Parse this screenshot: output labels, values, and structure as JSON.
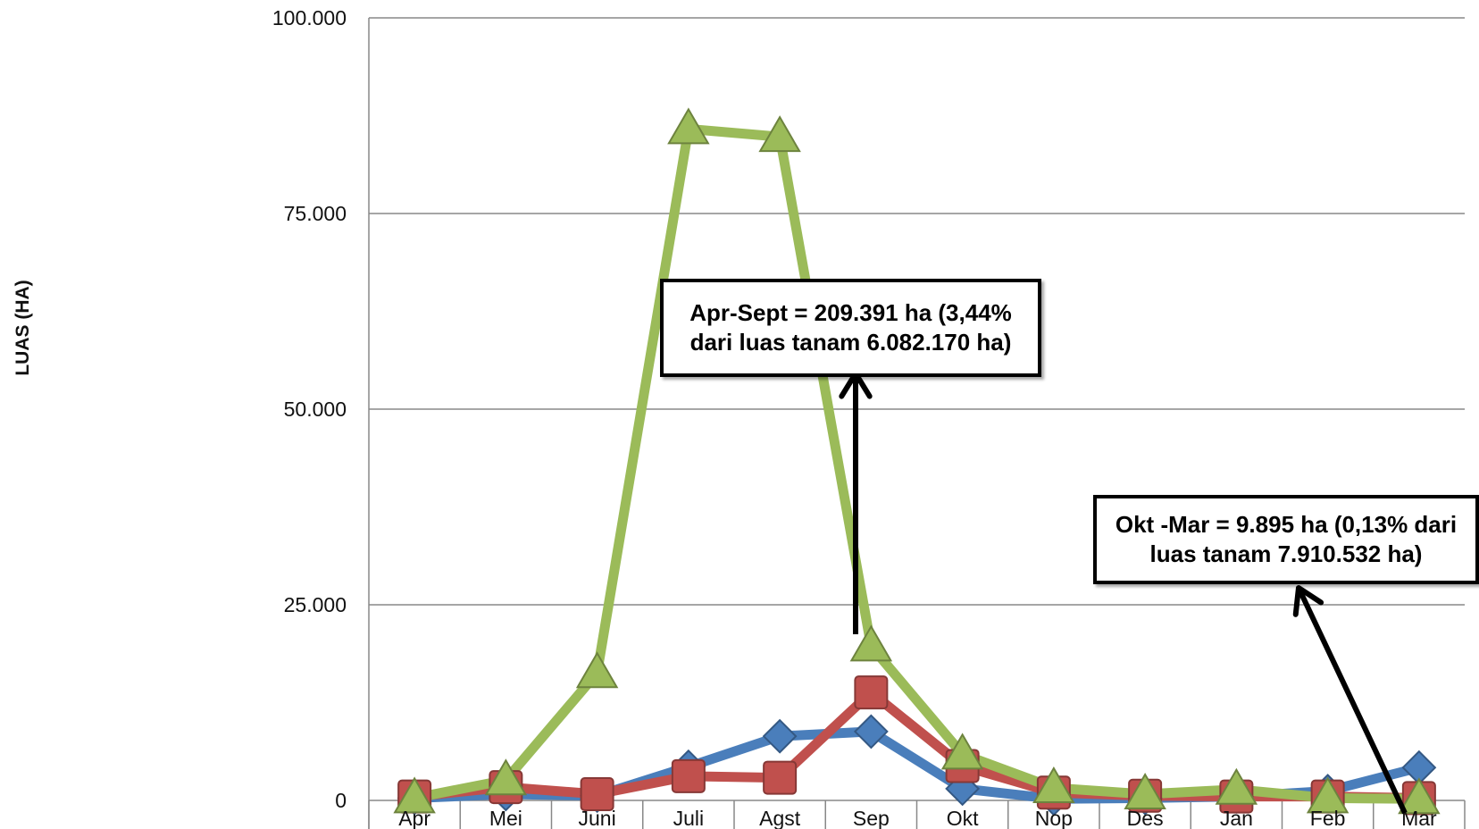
{
  "chart_data": {
    "type": "line",
    "title": "",
    "ylabel": "LUAS (HA)",
    "xlabel": "",
    "categories": [
      "Apr",
      "Mei",
      "Juni",
      "Juli",
      "Agst",
      "Sep",
      "Okt",
      "Nop",
      "Des",
      "Jan",
      "Feb",
      "Mar"
    ],
    "y_ticks": [
      "0",
      "25.000",
      "50.000",
      "75.000",
      "100.000"
    ],
    "y_tick_values": [
      0,
      25000,
      50000,
      75000,
      100000
    ],
    "ylim": [
      0,
      100000
    ],
    "grid": true,
    "legend": "none",
    "series": [
      {
        "color": "#4a7ebb",
        "marker": "diamond",
        "values": [
          300,
          800,
          600,
          4300,
          8200,
          8800,
          1500,
          200,
          300,
          500,
          1200,
          4200
        ]
      },
      {
        "color": "#c0504d",
        "marker": "square",
        "values": [
          500,
          1700,
          800,
          3100,
          2900,
          13800,
          4400,
          1000,
          600,
          500,
          500,
          300
        ]
      },
      {
        "color": "#9bbb59",
        "marker": "triangle",
        "values": [
          300,
          2600,
          16300,
          85800,
          84800,
          19700,
          5900,
          1600,
          800,
          1400,
          300,
          200
        ]
      }
    ],
    "annotations": [
      {
        "lines": [
          "Apr-Sept = 209.391 ha (3,44%",
          "dari luas tanam 6.082.170 ha)"
        ],
        "points_to": "Sep"
      },
      {
        "lines": [
          "Okt -Mar = 9.895 ha (0,13% dari",
          "luas tanam 7.910.532 ha)"
        ],
        "points_to": "Mar"
      }
    ]
  }
}
